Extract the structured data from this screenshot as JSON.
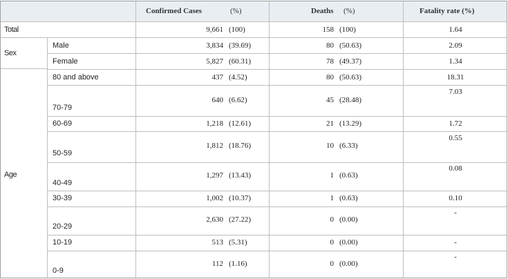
{
  "header": {
    "confirmed_label": "Confirmed Cases",
    "confirmed_unit": "(%)",
    "deaths_label": "Deaths",
    "deaths_unit": "(%)",
    "fatality_label": "Fatality rate (%)"
  },
  "groups": {
    "total": "Total",
    "sex": "Sex",
    "age": "Age"
  },
  "rows": [
    {
      "label": "",
      "cases": "9,661",
      "cases_pct": "(100)",
      "deaths": "158",
      "deaths_pct": "(100)",
      "rate": "1.64"
    },
    {
      "label": "Male",
      "cases": "3,834",
      "cases_pct": "(39.69)",
      "deaths": "80",
      "deaths_pct": "(50.63)",
      "rate": "2.09"
    },
    {
      "label": "Female",
      "cases": "5,827",
      "cases_pct": "(60.31)",
      "deaths": "78",
      "deaths_pct": "(49.37)",
      "rate": "1.34"
    },
    {
      "label": "80 and above",
      "cases": "437",
      "cases_pct": "(4.52)",
      "deaths": "80",
      "deaths_pct": "(50.63)",
      "rate": "18.31"
    },
    {
      "label": "70-79",
      "cases": "640",
      "cases_pct": "(6.62)",
      "deaths": "45",
      "deaths_pct": "(28.48)",
      "rate": "7.03"
    },
    {
      "label": "60-69",
      "cases": "1,218",
      "cases_pct": "(12.61)",
      "deaths": "21",
      "deaths_pct": "(13.29)",
      "rate": "1.72"
    },
    {
      "label": "50-59",
      "cases": "1,812",
      "cases_pct": "(18.76)",
      "deaths": "10",
      "deaths_pct": "(6.33)",
      "rate": "0.55"
    },
    {
      "label": "40-49",
      "cases": "1,297",
      "cases_pct": "(13.43)",
      "deaths": "1",
      "deaths_pct": "(0.63)",
      "rate": "0.08"
    },
    {
      "label": "30-39",
      "cases": "1,002",
      "cases_pct": "(10.37)",
      "deaths": "1",
      "deaths_pct": "(0.63)",
      "rate": "0.10"
    },
    {
      "label": "20-29",
      "cases": "2,630",
      "cases_pct": "(27.22)",
      "deaths": "0",
      "deaths_pct": "(0.00)",
      "rate": "-"
    },
    {
      "label": "10-19",
      "cases": "513",
      "cases_pct": "(5.31)",
      "deaths": "0",
      "deaths_pct": "(0.00)",
      "rate": "-"
    },
    {
      "label": "0-9",
      "cases": "112",
      "cases_pct": "(1.16)",
      "deaths": "0",
      "deaths_pct": "(0.00)",
      "rate": "-"
    }
  ]
}
